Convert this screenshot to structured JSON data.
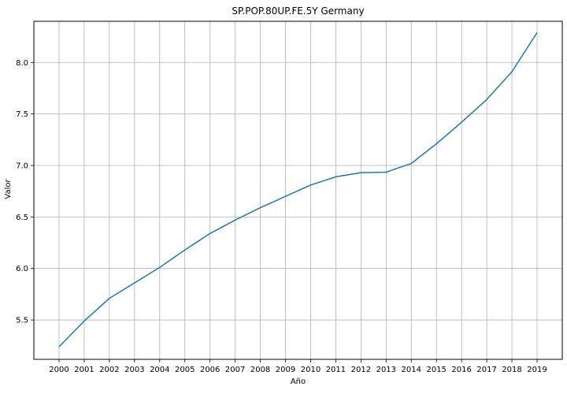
{
  "chart_data": {
    "type": "line",
    "title": "SP.POP.80UP.FE.5Y Germany",
    "xlabel": "Año",
    "ylabel": "Valor",
    "x": [
      "2000",
      "2001",
      "2002",
      "2003",
      "2004",
      "2005",
      "2006",
      "2007",
      "2008",
      "2009",
      "2010",
      "2011",
      "2012",
      "2013",
      "2014",
      "2015",
      "2016",
      "2017",
      "2018",
      "2019"
    ],
    "series": [
      {
        "values": [
          5.24,
          5.49,
          5.71,
          5.86,
          6.01,
          6.18,
          6.34,
          6.47,
          6.59,
          6.7,
          6.81,
          6.89,
          6.93,
          6.935,
          7.02,
          7.21,
          7.42,
          7.64,
          7.91,
          8.29
        ],
        "color": "#1f77b4"
      }
    ],
    "yticks": [
      "5.5",
      "6.0",
      "6.5",
      "7.0",
      "7.5",
      "8.0"
    ],
    "ylim": [
      5.118,
      8.4
    ],
    "grid": true,
    "legend": "none"
  }
}
